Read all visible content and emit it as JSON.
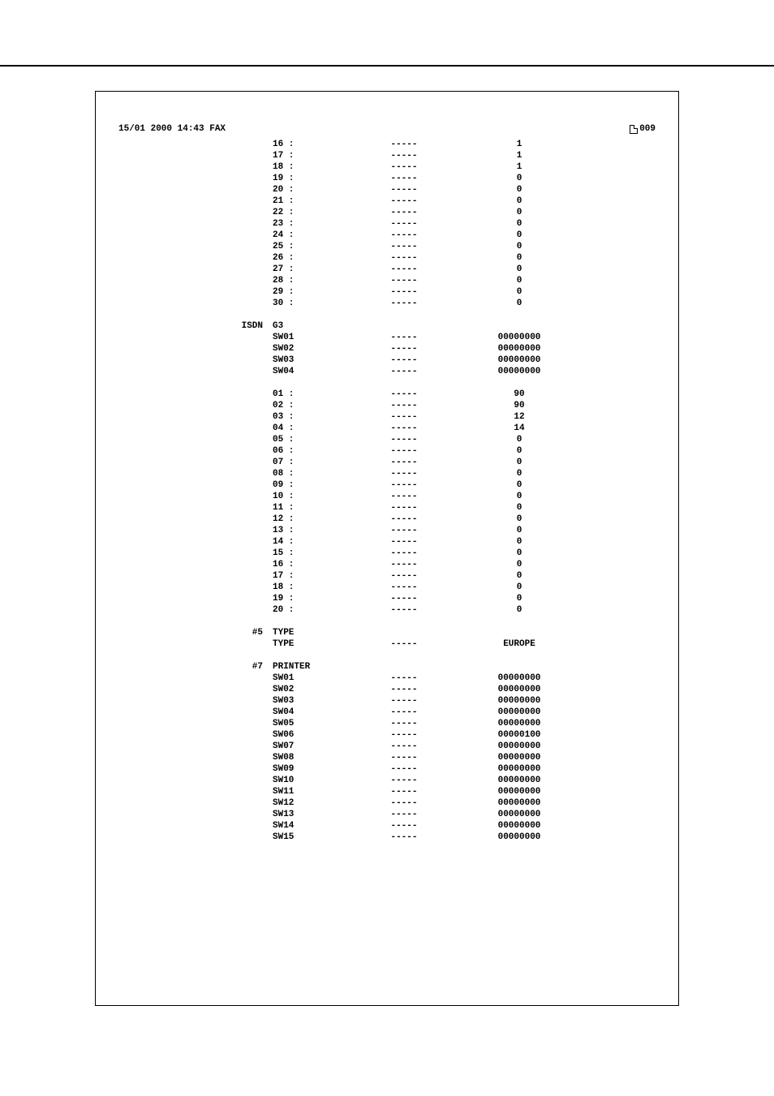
{
  "header": {
    "timestamp": "15/01 2000 14:43 FAX",
    "page_number": "009"
  },
  "dashes": "-----",
  "sections": [
    {
      "group_label": "",
      "rows": [
        {
          "label": "16 :",
          "value": "1"
        },
        {
          "label": "17 :",
          "value": "1"
        },
        {
          "label": "18 :",
          "value": "1"
        },
        {
          "label": "19 :",
          "value": "0"
        },
        {
          "label": "20 :",
          "value": "0"
        },
        {
          "label": "21 :",
          "value": "0"
        },
        {
          "label": "22 :",
          "value": "0"
        },
        {
          "label": "23 :",
          "value": "0"
        },
        {
          "label": "24 :",
          "value": "0"
        },
        {
          "label": "25 :",
          "value": "0"
        },
        {
          "label": "26 :",
          "value": "0"
        },
        {
          "label": "27 :",
          "value": "0"
        },
        {
          "label": "28 :",
          "value": "0"
        },
        {
          "label": "29 :",
          "value": "0"
        },
        {
          "label": "30 :",
          "value": "0"
        }
      ]
    },
    {
      "group_label": "ISDN",
      "title": "G3",
      "rows": [
        {
          "label": "SW01",
          "value": "00000000"
        },
        {
          "label": "SW02",
          "value": "00000000"
        },
        {
          "label": "SW03",
          "value": "00000000"
        },
        {
          "label": "SW04",
          "value": "00000000"
        }
      ]
    },
    {
      "group_label": "",
      "rows": [
        {
          "label": "01 :",
          "value": "90"
        },
        {
          "label": "02 :",
          "value": "90"
        },
        {
          "label": "03 :",
          "value": "12"
        },
        {
          "label": "04 :",
          "value": "14"
        },
        {
          "label": "05 :",
          "value": "0"
        },
        {
          "label": "06 :",
          "value": "0"
        },
        {
          "label": "07 :",
          "value": "0"
        },
        {
          "label": "08 :",
          "value": "0"
        },
        {
          "label": "09 :",
          "value": "0"
        },
        {
          "label": "10 :",
          "value": "0"
        },
        {
          "label": "11 :",
          "value": "0"
        },
        {
          "label": "12 :",
          "value": "0"
        },
        {
          "label": "13 :",
          "value": "0"
        },
        {
          "label": "14 :",
          "value": "0"
        },
        {
          "label": "15 :",
          "value": "0"
        },
        {
          "label": "16 :",
          "value": "0"
        },
        {
          "label": "17 :",
          "value": "0"
        },
        {
          "label": "18 :",
          "value": "0"
        },
        {
          "label": "19 :",
          "value": "0"
        },
        {
          "label": "20 :",
          "value": "0"
        }
      ]
    },
    {
      "group_label": "#5",
      "title": "TYPE",
      "rows": [
        {
          "label": "TYPE",
          "value": "EUROPE"
        }
      ]
    },
    {
      "group_label": "#7",
      "title": "PRINTER",
      "rows": [
        {
          "label": "SW01",
          "value": "00000000"
        },
        {
          "label": "SW02",
          "value": "00000000"
        },
        {
          "label": "SW03",
          "value": "00000000"
        },
        {
          "label": "SW04",
          "value": "00000000"
        },
        {
          "label": "SW05",
          "value": "00000000"
        },
        {
          "label": "SW06",
          "value": "00000100"
        },
        {
          "label": "SW07",
          "value": "00000000"
        },
        {
          "label": "SW08",
          "value": "00000000"
        },
        {
          "label": "SW09",
          "value": "00000000"
        },
        {
          "label": "SW10",
          "value": "00000000"
        },
        {
          "label": "SW11",
          "value": "00000000"
        },
        {
          "label": "SW12",
          "value": "00000000"
        },
        {
          "label": "SW13",
          "value": "00000000"
        },
        {
          "label": "SW14",
          "value": "00000000"
        },
        {
          "label": "SW15",
          "value": "00000000"
        }
      ]
    }
  ]
}
